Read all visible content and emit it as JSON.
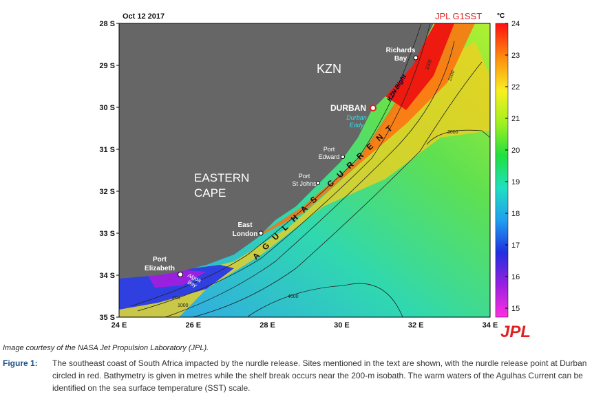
{
  "map": {
    "date": "Oct 12 2017",
    "source": "JPL G1SST",
    "logo": "JPL",
    "unit": "°C",
    "lat_labels": [
      "28 S",
      "29 S",
      "30 S",
      "31 S",
      "32 S",
      "33 S",
      "34 S",
      "35 S"
    ],
    "lon_labels": [
      "24 E",
      "26 E",
      "28 E",
      "30 E",
      "32 E",
      "34 E"
    ],
    "colorbar_labels": [
      24,
      23,
      22,
      21,
      20,
      19,
      18,
      17,
      16,
      15
    ],
    "regions": {
      "kzn": "KZN",
      "eastern_cape": [
        "EASTERN",
        "CAPE"
      ]
    },
    "places": {
      "richards_bay": [
        "Richards",
        "Bay"
      ],
      "durban": "DURBAN",
      "durban_eddy": [
        "Durban",
        "Eddy"
      ],
      "port_edward": [
        "Port",
        "Edward"
      ],
      "port_st_johns": [
        "Port",
        "St Johns"
      ],
      "east_london": [
        "East",
        "London"
      ],
      "port_elizabeth": [
        "Port",
        "Elizabeth"
      ],
      "algoa_bay": [
        "Algoa",
        "Bay"
      ],
      "kzn_bight": "KZN Bight"
    },
    "current": "AGULHAS CURRENT",
    "isobaths": [
      "200",
      "1000",
      "2000",
      "3000",
      "4000"
    ]
  },
  "caption": {
    "credit": "Image courtesy of the NASA Jet Propulsion Laboratory (JPL).",
    "label": "Figure 1:",
    "text": "The southeast coast of South Africa impacted by the nurdle release. Sites mentioned in the text are shown, with the nurdle release point at Durban circled in red. Bathymetry is given in metres while the shelf break occurs near the 200-m isobath. The warm waters of the Agulhas Current can be identified on the sea surface temperature (SST) scale."
  }
}
